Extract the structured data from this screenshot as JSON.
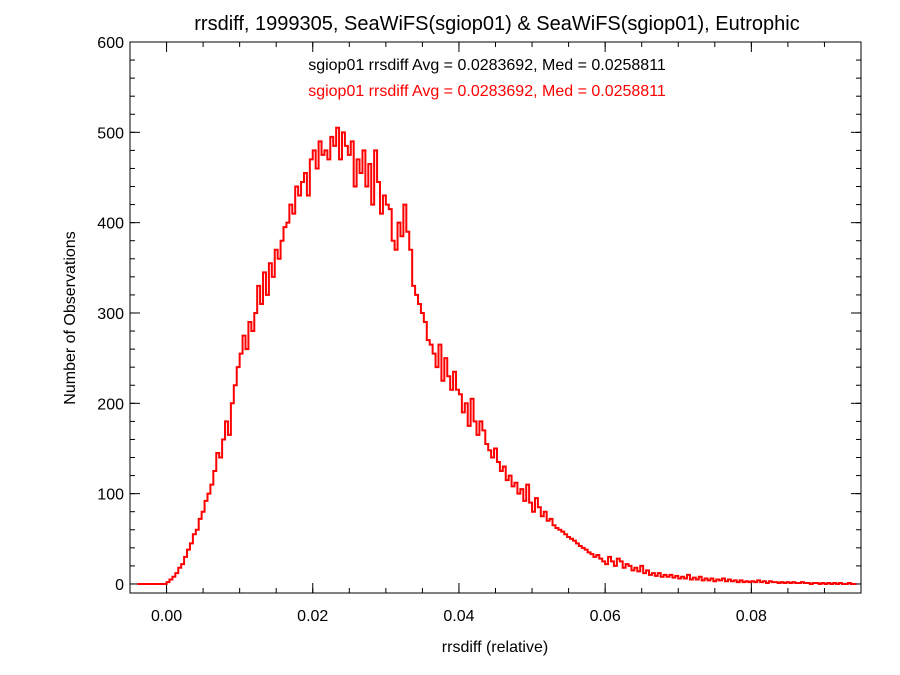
{
  "chart_data": {
    "type": "histogram",
    "title": "rrsdiff, 1999305, SeaWiFS(sgiop01) & SeaWiFS(sgiop01), Eutrophic",
    "xlabel": "rrsdiff (relative)",
    "ylabel": "Number of Observations",
    "xlim": [
      -0.005,
      0.095
    ],
    "ylim": [
      -10,
      600
    ],
    "xticks": [
      0.0,
      0.02,
      0.04,
      0.06,
      0.08
    ],
    "xtick_labels": [
      "0.00",
      "0.02",
      "0.04",
      "0.06",
      "0.08"
    ],
    "yticks": [
      0,
      100,
      200,
      300,
      400,
      500,
      600
    ],
    "ytick_labels": [
      "0",
      "100",
      "200",
      "300",
      "400",
      "500",
      "600"
    ],
    "x_minor_step": 0.005,
    "y_minor_step": 20,
    "bin_width": 0.0004,
    "annotations": [
      {
        "text": "sgiop01 rrsdiff Avg = 0.0283692, Med = 0.0258811",
        "color": "#000000"
      },
      {
        "text": "sgiop01 rrsdiff Avg = 0.0283692, Med = 0.0258811",
        "color": "#ff0000"
      }
    ],
    "series": [
      {
        "color": "#ff0000",
        "points": [
          [
            -0.004,
            0
          ],
          [
            -0.002,
            0
          ],
          [
            0.0,
            2
          ],
          [
            0.0004,
            5
          ],
          [
            0.0008,
            8
          ],
          [
            0.0012,
            12
          ],
          [
            0.0016,
            18
          ],
          [
            0.002,
            22
          ],
          [
            0.0024,
            30
          ],
          [
            0.0028,
            38
          ],
          [
            0.0032,
            45
          ],
          [
            0.0036,
            55
          ],
          [
            0.004,
            60
          ],
          [
            0.0044,
            72
          ],
          [
            0.0048,
            80
          ],
          [
            0.0052,
            92
          ],
          [
            0.0056,
            100
          ],
          [
            0.006,
            110
          ],
          [
            0.0064,
            125
          ],
          [
            0.0068,
            145
          ],
          [
            0.0072,
            140
          ],
          [
            0.0076,
            160
          ],
          [
            0.008,
            180
          ],
          [
            0.0084,
            165
          ],
          [
            0.0088,
            200
          ],
          [
            0.0092,
            220
          ],
          [
            0.0096,
            240
          ],
          [
            0.01,
            255
          ],
          [
            0.0104,
            275
          ],
          [
            0.0108,
            260
          ],
          [
            0.0112,
            290
          ],
          [
            0.0116,
            280
          ],
          [
            0.012,
            300
          ],
          [
            0.0124,
            330
          ],
          [
            0.0128,
            310
          ],
          [
            0.0132,
            345
          ],
          [
            0.0136,
            320
          ],
          [
            0.014,
            355
          ],
          [
            0.0144,
            340
          ],
          [
            0.0148,
            370
          ],
          [
            0.0152,
            360
          ],
          [
            0.0156,
            380
          ],
          [
            0.016,
            395
          ],
          [
            0.0164,
            400
          ],
          [
            0.0168,
            420
          ],
          [
            0.0172,
            410
          ],
          [
            0.0176,
            440
          ],
          [
            0.018,
            430
          ],
          [
            0.0184,
            445
          ],
          [
            0.0188,
            455
          ],
          [
            0.0192,
            430
          ],
          [
            0.0196,
            470
          ],
          [
            0.02,
            480
          ],
          [
            0.0204,
            460
          ],
          [
            0.0208,
            490
          ],
          [
            0.0212,
            475
          ],
          [
            0.0216,
            480
          ],
          [
            0.022,
            470
          ],
          [
            0.0224,
            495
          ],
          [
            0.0228,
            485
          ],
          [
            0.0232,
            505
          ],
          [
            0.0236,
            470
          ],
          [
            0.024,
            500
          ],
          [
            0.0244,
            485
          ],
          [
            0.0248,
            475
          ],
          [
            0.0252,
            490
          ],
          [
            0.0256,
            440
          ],
          [
            0.026,
            470
          ],
          [
            0.0264,
            455
          ],
          [
            0.0268,
            480
          ],
          [
            0.0272,
            440
          ],
          [
            0.0276,
            465
          ],
          [
            0.028,
            420
          ],
          [
            0.0284,
            480
          ],
          [
            0.0288,
            445
          ],
          [
            0.0292,
            410
          ],
          [
            0.0296,
            430
          ],
          [
            0.03,
            420
          ],
          [
            0.0304,
            415
          ],
          [
            0.0308,
            380
          ],
          [
            0.0312,
            370
          ],
          [
            0.0316,
            400
          ],
          [
            0.032,
            385
          ],
          [
            0.0324,
            420
          ],
          [
            0.0328,
            390
          ],
          [
            0.0332,
            370
          ],
          [
            0.0336,
            330
          ],
          [
            0.034,
            320
          ],
          [
            0.0344,
            310
          ],
          [
            0.0348,
            300
          ],
          [
            0.0352,
            290
          ],
          [
            0.0356,
            270
          ],
          [
            0.036,
            265
          ],
          [
            0.0364,
            255
          ],
          [
            0.0368,
            240
          ],
          [
            0.0372,
            265
          ],
          [
            0.0376,
            225
          ],
          [
            0.038,
            250
          ],
          [
            0.0384,
            230
          ],
          [
            0.0388,
            215
          ],
          [
            0.0392,
            235
          ],
          [
            0.0396,
            215
          ],
          [
            0.04,
            210
          ],
          [
            0.0404,
            190
          ],
          [
            0.0408,
            200
          ],
          [
            0.0412,
            175
          ],
          [
            0.0416,
            205
          ],
          [
            0.042,
            180
          ],
          [
            0.0424,
            165
          ],
          [
            0.0428,
            180
          ],
          [
            0.0432,
            170
          ],
          [
            0.0436,
            155
          ],
          [
            0.044,
            148
          ],
          [
            0.0444,
            140
          ],
          [
            0.0448,
            150
          ],
          [
            0.0452,
            135
          ],
          [
            0.0456,
            125
          ],
          [
            0.046,
            130
          ],
          [
            0.0464,
            115
          ],
          [
            0.0468,
            120
          ],
          [
            0.0472,
            108
          ],
          [
            0.0476,
            112
          ],
          [
            0.048,
            100
          ],
          [
            0.0484,
            105
          ],
          [
            0.0488,
            92
          ],
          [
            0.0492,
            110
          ],
          [
            0.0496,
            90
          ],
          [
            0.05,
            80
          ],
          [
            0.0504,
            95
          ],
          [
            0.0508,
            85
          ],
          [
            0.0512,
            75
          ],
          [
            0.0516,
            80
          ],
          [
            0.052,
            70
          ],
          [
            0.0524,
            72
          ],
          [
            0.0528,
            65
          ],
          [
            0.0532,
            62
          ],
          [
            0.0536,
            60
          ],
          [
            0.054,
            58
          ],
          [
            0.0544,
            55
          ],
          [
            0.0548,
            52
          ],
          [
            0.0552,
            50
          ],
          [
            0.0556,
            48
          ],
          [
            0.056,
            45
          ],
          [
            0.0564,
            42
          ],
          [
            0.0568,
            40
          ],
          [
            0.0572,
            38
          ],
          [
            0.0576,
            35
          ],
          [
            0.058,
            33
          ],
          [
            0.0584,
            30
          ],
          [
            0.0588,
            32
          ],
          [
            0.0592,
            28
          ],
          [
            0.0596,
            25
          ],
          [
            0.06,
            22
          ],
          [
            0.0604,
            30
          ],
          [
            0.0608,
            25
          ],
          [
            0.0612,
            20
          ],
          [
            0.0616,
            28
          ],
          [
            0.062,
            25
          ],
          [
            0.0624,
            18
          ],
          [
            0.0628,
            22
          ],
          [
            0.0632,
            20
          ],
          [
            0.0636,
            15
          ],
          [
            0.064,
            18
          ],
          [
            0.0644,
            14
          ],
          [
            0.0648,
            20
          ],
          [
            0.0652,
            12
          ],
          [
            0.0656,
            15
          ],
          [
            0.066,
            10
          ],
          [
            0.0664,
            12
          ],
          [
            0.0668,
            9
          ],
          [
            0.0672,
            12
          ],
          [
            0.0676,
            8
          ],
          [
            0.068,
            10
          ],
          [
            0.0684,
            8
          ],
          [
            0.0688,
            10
          ],
          [
            0.0692,
            7
          ],
          [
            0.0696,
            9
          ],
          [
            0.07,
            6
          ],
          [
            0.0704,
            8
          ],
          [
            0.0708,
            6
          ],
          [
            0.0712,
            10
          ],
          [
            0.0716,
            5
          ],
          [
            0.072,
            7
          ],
          [
            0.0724,
            5
          ],
          [
            0.0728,
            8
          ],
          [
            0.0732,
            4
          ],
          [
            0.0736,
            6
          ],
          [
            0.074,
            4
          ],
          [
            0.0744,
            6
          ],
          [
            0.0748,
            3
          ],
          [
            0.0752,
            5
          ],
          [
            0.0756,
            4
          ],
          [
            0.076,
            6
          ],
          [
            0.0764,
            3
          ],
          [
            0.0768,
            5
          ],
          [
            0.0772,
            3
          ],
          [
            0.0776,
            4
          ],
          [
            0.078,
            2
          ],
          [
            0.0784,
            4
          ],
          [
            0.0788,
            2
          ],
          [
            0.0792,
            3
          ],
          [
            0.0796,
            2
          ],
          [
            0.08,
            3
          ],
          [
            0.0804,
            2
          ],
          [
            0.0808,
            4
          ],
          [
            0.0812,
            2
          ],
          [
            0.0816,
            3
          ],
          [
            0.082,
            1
          ],
          [
            0.0824,
            3
          ],
          [
            0.0828,
            2
          ],
          [
            0.0832,
            2
          ],
          [
            0.0836,
            1
          ],
          [
            0.084,
            2
          ],
          [
            0.0844,
            1
          ],
          [
            0.0848,
            2
          ],
          [
            0.0852,
            1
          ],
          [
            0.0856,
            2
          ],
          [
            0.086,
            1
          ],
          [
            0.0864,
            1
          ],
          [
            0.0868,
            2
          ],
          [
            0.0872,
            1
          ],
          [
            0.0876,
            1
          ],
          [
            0.088,
            0
          ],
          [
            0.0884,
            1
          ],
          [
            0.0888,
            1
          ],
          [
            0.0892,
            0
          ],
          [
            0.0896,
            1
          ],
          [
            0.09,
            0
          ],
          [
            0.0904,
            1
          ],
          [
            0.0908,
            0
          ],
          [
            0.0912,
            1
          ],
          [
            0.0916,
            0
          ],
          [
            0.092,
            1
          ],
          [
            0.0924,
            0
          ],
          [
            0.0928,
            0
          ],
          [
            0.0932,
            1
          ],
          [
            0.0936,
            0
          ],
          [
            0.094,
            0
          ]
        ]
      }
    ]
  }
}
